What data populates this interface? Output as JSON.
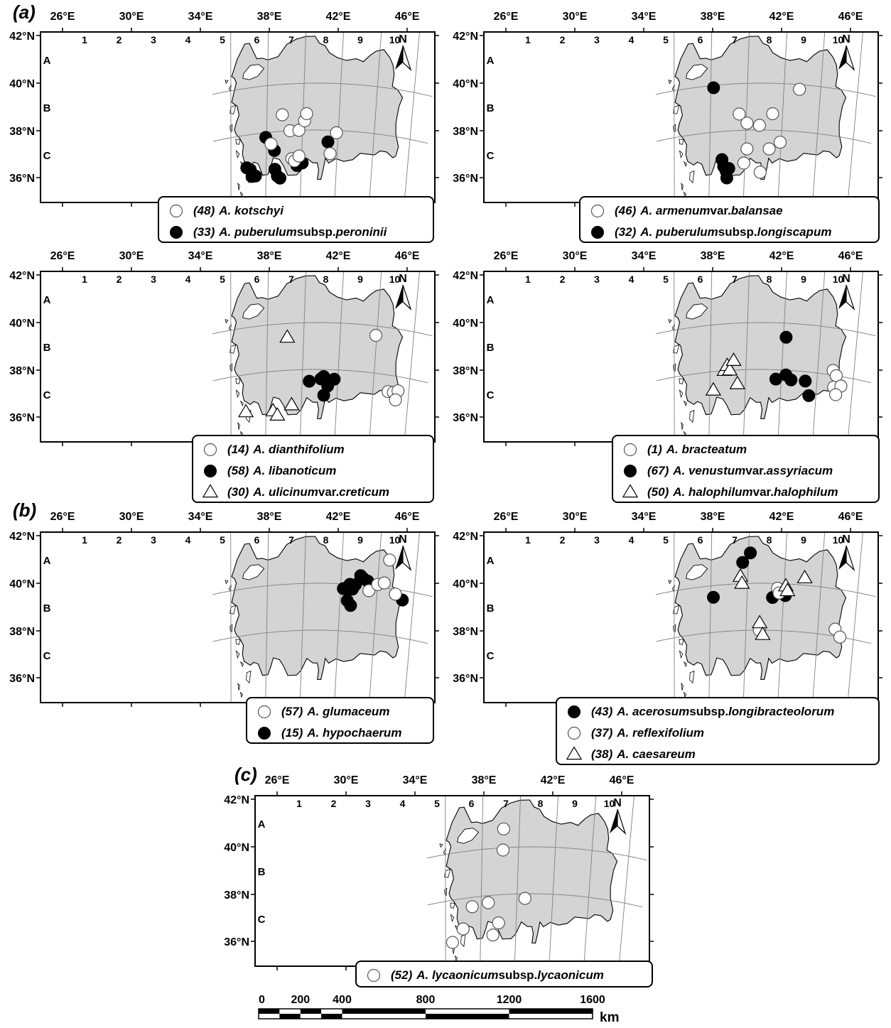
{
  "panel_labels": [
    "(a)",
    "(b)",
    "(c)"
  ],
  "longitude_labels": [
    "26°E",
    "30°E",
    "34°E",
    "38°E",
    "42°E",
    "46°E"
  ],
  "latitude_labels": [
    "42°N",
    "40°N",
    "38°N",
    "36°N"
  ],
  "grid_columns": [
    "1",
    "2",
    "3",
    "4",
    "5",
    "6",
    "7",
    "8",
    "9",
    "10"
  ],
  "grid_rows": [
    "A",
    "B",
    "C"
  ],
  "north_label": "N",
  "colors": {
    "land": "#d4d4d4",
    "water": "#ffffff",
    "outline": "#000000",
    "graticule": "#808080"
  },
  "maps": [
    {
      "name": "a1",
      "legend": [
        {
          "symbol": "open-circle",
          "number": "(48)",
          "parts": [
            [
              "i",
              "A. kotschyi"
            ]
          ]
        },
        {
          "symbol": "filled-circle",
          "number": "(33)",
          "parts": [
            [
              "i",
              "A. puberulum"
            ],
            [
              "r",
              " subsp. "
            ],
            [
              "i",
              "peroninii"
            ]
          ]
        }
      ],
      "points": [
        {
          "symbol": "filled-circle",
          "lon": 27.8,
          "lat": 36.6
        },
        {
          "symbol": "filled-circle",
          "lon": 28.2,
          "lat": 36.5
        },
        {
          "symbol": "filled-circle",
          "lon": 28.4,
          "lat": 36.2
        },
        {
          "symbol": "filled-circle",
          "lon": 28.8,
          "lat": 36.2
        },
        {
          "symbol": "filled-circle",
          "lon": 29.9,
          "lat": 37.8
        },
        {
          "symbol": "filled-circle",
          "lon": 30.9,
          "lat": 37.2
        },
        {
          "symbol": "filled-circle",
          "lon": 31.0,
          "lat": 36.4
        },
        {
          "symbol": "filled-circle",
          "lon": 31.3,
          "lat": 36.1
        },
        {
          "symbol": "filled-circle",
          "lon": 31.6,
          "lat": 36.0
        },
        {
          "symbol": "filled-circle",
          "lon": 33.5,
          "lat": 36.5
        },
        {
          "symbol": "filled-circle",
          "lon": 34.1,
          "lat": 36.6
        },
        {
          "symbol": "filled-circle",
          "lon": 36.9,
          "lat": 37.5
        },
        {
          "symbol": "open-circle",
          "lon": 31.7,
          "lat": 38.7
        },
        {
          "symbol": "open-circle",
          "lon": 32.6,
          "lat": 38.0
        },
        {
          "symbol": "open-circle",
          "lon": 33.6,
          "lat": 38.0
        },
        {
          "symbol": "open-circle",
          "lon": 34.2,
          "lat": 38.4
        },
        {
          "symbol": "open-circle",
          "lon": 34.4,
          "lat": 38.7
        },
        {
          "symbol": "open-circle",
          "lon": 32.9,
          "lat": 36.8
        },
        {
          "symbol": "open-circle",
          "lon": 33.2,
          "lat": 36.7
        },
        {
          "symbol": "open-circle",
          "lon": 33.7,
          "lat": 36.9
        },
        {
          "symbol": "open-circle",
          "lon": 37.2,
          "lat": 37.0
        },
        {
          "symbol": "open-circle",
          "lon": 37.8,
          "lat": 37.9
        },
        {
          "symbol": "open-circle",
          "lon": 30.5,
          "lat": 37.5
        }
      ]
    },
    {
      "name": "a2",
      "legend": [
        {
          "symbol": "open-circle",
          "number": "(46)",
          "parts": [
            [
              "i",
              "A. armenum"
            ],
            [
              "r",
              " var. "
            ],
            [
              "i",
              "balansae"
            ]
          ]
        },
        {
          "symbol": "filled-circle",
          "number": "(32)",
          "parts": [
            [
              "i",
              "A. puberulum"
            ],
            [
              "r",
              " subsp. "
            ],
            [
              "i",
              "longiscapum"
            ]
          ]
        }
      ],
      "points": [
        {
          "symbol": "filled-circle",
          "lon": 30.3,
          "lat": 39.9
        },
        {
          "symbol": "filled-circle",
          "lon": 31.4,
          "lat": 36.8
        },
        {
          "symbol": "filled-circle",
          "lon": 31.6,
          "lat": 36.5
        },
        {
          "symbol": "filled-circle",
          "lon": 31.9,
          "lat": 36.3
        },
        {
          "symbol": "filled-circle",
          "lon": 32.2,
          "lat": 36.4
        },
        {
          "symbol": "filled-circle",
          "lon": 32.0,
          "lat": 36.0
        },
        {
          "symbol": "open-circle",
          "lon": 33.2,
          "lat": 38.7
        },
        {
          "symbol": "open-circle",
          "lon": 34.1,
          "lat": 38.3
        },
        {
          "symbol": "open-circle",
          "lon": 35.5,
          "lat": 38.2
        },
        {
          "symbol": "open-circle",
          "lon": 36.9,
          "lat": 38.7
        },
        {
          "symbol": "open-circle",
          "lon": 37.9,
          "lat": 37.5
        },
        {
          "symbol": "open-circle",
          "lon": 36.7,
          "lat": 37.2
        },
        {
          "symbol": "open-circle",
          "lon": 34.2,
          "lat": 37.2
        },
        {
          "symbol": "open-circle",
          "lon": 33.9,
          "lat": 36.6
        },
        {
          "symbol": "open-circle",
          "lon": 35.8,
          "lat": 36.2
        },
        {
          "symbol": "open-circle",
          "lon": 39.7,
          "lat": 39.8
        }
      ]
    },
    {
      "name": "a3",
      "legend": [
        {
          "symbol": "open-circle",
          "number": "(14)",
          "parts": [
            [
              "i",
              "A. dianthifolium"
            ]
          ]
        },
        {
          "symbol": "filled-circle",
          "number": "(58)",
          "parts": [
            [
              "i",
              "A. libanoticum"
            ]
          ]
        },
        {
          "symbol": "open-triangle",
          "number": "(30)",
          "parts": [
            [
              "i",
              "A. ulicinum"
            ],
            [
              "r",
              " var. "
            ],
            [
              "i",
              "creticum"
            ]
          ]
        }
      ],
      "points": [
        {
          "symbol": "filled-circle",
          "lon": 34.8,
          "lat": 37.5
        },
        {
          "symbol": "filled-circle",
          "lon": 36.1,
          "lat": 37.6
        },
        {
          "symbol": "filled-circle",
          "lon": 36.4,
          "lat": 37.7
        },
        {
          "symbol": "filled-circle",
          "lon": 36.9,
          "lat": 37.3
        },
        {
          "symbol": "filled-circle",
          "lon": 37.6,
          "lat": 37.6
        },
        {
          "symbol": "filled-circle",
          "lon": 36.5,
          "lat": 36.9
        },
        {
          "symbol": "open-triangle",
          "lon": 32.2,
          "lat": 39.4
        },
        {
          "symbol": "open-triangle",
          "lon": 27.7,
          "lat": 36.4
        },
        {
          "symbol": "open-triangle",
          "lon": 30.8,
          "lat": 36.3
        },
        {
          "symbol": "open-triangle",
          "lon": 31.3,
          "lat": 36.1
        },
        {
          "symbol": "open-triangle",
          "lon": 32.9,
          "lat": 36.5
        },
        {
          "symbol": "open-circle",
          "lon": 41.9,
          "lat": 39.6
        },
        {
          "symbol": "open-circle",
          "lon": 43.7,
          "lat": 37.3
        },
        {
          "symbol": "open-circle",
          "lon": 44.3,
          "lat": 37.3
        },
        {
          "symbol": "open-circle",
          "lon": 44.8,
          "lat": 37.4
        },
        {
          "symbol": "open-circle",
          "lon": 44.6,
          "lat": 37.0
        }
      ]
    },
    {
      "name": "a4",
      "legend": [
        {
          "symbol": "open-circle",
          "number": "(1)",
          "parts": [
            [
              "i",
              "A. bracteatum"
            ]
          ]
        },
        {
          "symbol": "filled-circle",
          "number": "(67)",
          "parts": [
            [
              "i",
              "A. venustum"
            ],
            [
              "r",
              " var. "
            ],
            [
              "i",
              "assyriacum"
            ]
          ]
        },
        {
          "symbol": "open-triangle",
          "number": "(50)",
          "parts": [
            [
              "i",
              "A. halophilum"
            ],
            [
              "r",
              " var. "
            ],
            [
              "i",
              "halophilum"
            ]
          ]
        }
      ],
      "points": [
        {
          "symbol": "filled-circle",
          "lon": 38.3,
          "lat": 39.4
        },
        {
          "symbol": "filled-circle",
          "lon": 37.4,
          "lat": 37.6
        },
        {
          "symbol": "filled-circle",
          "lon": 38.5,
          "lat": 37.8
        },
        {
          "symbol": "filled-circle",
          "lon": 39.1,
          "lat": 37.6
        },
        {
          "symbol": "filled-circle",
          "lon": 40.7,
          "lat": 37.6
        },
        {
          "symbol": "filled-circle",
          "lon": 41.2,
          "lat": 37.0
        },
        {
          "symbol": "open-triangle",
          "lon": 30.4,
          "lat": 37.2
        },
        {
          "symbol": "open-triangle",
          "lon": 31.6,
          "lat": 38.0
        },
        {
          "symbol": "open-triangle",
          "lon": 31.9,
          "lat": 38.2
        },
        {
          "symbol": "open-triangle",
          "lon": 32.2,
          "lat": 38.0
        },
        {
          "symbol": "open-triangle",
          "lon": 32.6,
          "lat": 38.4
        },
        {
          "symbol": "open-triangle",
          "lon": 33.1,
          "lat": 37.4
        },
        {
          "symbol": "open-circle",
          "lon": 43.7,
          "lat": 38.2
        },
        {
          "symbol": "open-circle",
          "lon": 44.1,
          "lat": 38.0
        },
        {
          "symbol": "open-circle",
          "lon": 43.9,
          "lat": 37.5
        },
        {
          "symbol": "open-circle",
          "lon": 44.7,
          "lat": 37.6
        },
        {
          "symbol": "open-circle",
          "lon": 44.2,
          "lat": 37.2
        }
      ]
    },
    {
      "name": "b1",
      "legend": [
        {
          "symbol": "open-circle",
          "number": "(57)",
          "parts": [
            [
              "i",
              "A. glumaceum"
            ]
          ]
        },
        {
          "symbol": "filled-circle",
          "number": "(15)",
          "parts": [
            [
              "i",
              "A. hypochaerum"
            ]
          ]
        }
      ],
      "points": [
        {
          "symbol": "filled-circle",
          "lon": 38.3,
          "lat": 39.8
        },
        {
          "symbol": "filled-circle",
          "lon": 38.9,
          "lat": 39.8
        },
        {
          "symbol": "filled-circle",
          "lon": 39.3,
          "lat": 39.8
        },
        {
          "symbol": "filled-circle",
          "lon": 39.6,
          "lat": 40.0
        },
        {
          "symbol": "filled-circle",
          "lon": 40.1,
          "lat": 40.4
        },
        {
          "symbol": "filled-circle",
          "lon": 40.4,
          "lat": 40.3
        },
        {
          "symbol": "filled-circle",
          "lon": 40.9,
          "lat": 40.2
        },
        {
          "symbol": "filled-circle",
          "lon": 38.8,
          "lat": 39.3
        },
        {
          "symbol": "filled-circle",
          "lon": 39.2,
          "lat": 39.1
        },
        {
          "symbol": "filled-circle",
          "lon": 39.0,
          "lat": 40.0
        },
        {
          "symbol": "filled-circle",
          "lon": 44.8,
          "lat": 39.6
        },
        {
          "symbol": "open-circle",
          "lon": 41.1,
          "lat": 39.8
        },
        {
          "symbol": "open-circle",
          "lon": 42.0,
          "lat": 40.1
        },
        {
          "symbol": "open-circle",
          "lon": 42.7,
          "lat": 40.2
        },
        {
          "symbol": "open-circle",
          "lon": 43.1,
          "lat": 41.2
        },
        {
          "symbol": "open-circle",
          "lon": 44.0,
          "lat": 39.8
        }
      ]
    },
    {
      "name": "b2",
      "legend": [
        {
          "symbol": "filled-circle",
          "number": "(43)",
          "parts": [
            [
              "i",
              "A. acerosum"
            ],
            [
              "r",
              " subsp. "
            ],
            [
              "i",
              "longibracteolorum"
            ]
          ]
        },
        {
          "symbol": "open-circle",
          "number": "(37)",
          "parts": [
            [
              "i",
              "A. reflexifolium"
            ]
          ]
        },
        {
          "symbol": "open-triangle",
          "number": "(38)",
          "parts": [
            [
              "i",
              "A. caesareum"
            ]
          ]
        }
      ],
      "points": [
        {
          "symbol": "filled-circle",
          "lon": 30.3,
          "lat": 39.5
        },
        {
          "symbol": "filled-circle",
          "lon": 33.4,
          "lat": 40.9
        },
        {
          "symbol": "filled-circle",
          "lon": 34.2,
          "lat": 41.3
        },
        {
          "symbol": "filled-circle",
          "lon": 36.8,
          "lat": 39.4
        },
        {
          "symbol": "filled-circle",
          "lon": 38.2,
          "lat": 39.5
        },
        {
          "symbol": "open-circle",
          "lon": 37.3,
          "lat": 39.8
        },
        {
          "symbol": "open-circle",
          "lon": 37.5,
          "lat": 39.6
        },
        {
          "symbol": "open-circle",
          "lon": 35.5,
          "lat": 38.0
        },
        {
          "symbol": "open-circle",
          "lon": 43.9,
          "lat": 38.3
        },
        {
          "symbol": "open-circle",
          "lon": 44.5,
          "lat": 38.0
        },
        {
          "symbol": "open-triangle",
          "lon": 33.2,
          "lat": 40.3
        },
        {
          "symbol": "open-triangle",
          "lon": 33.4,
          "lat": 40.0
        },
        {
          "symbol": "open-triangle",
          "lon": 38.2,
          "lat": 39.9
        },
        {
          "symbol": "open-triangle",
          "lon": 38.4,
          "lat": 39.7
        },
        {
          "symbol": "open-triangle",
          "lon": 40.2,
          "lat": 40.3
        },
        {
          "symbol": "open-triangle",
          "lon": 35.5,
          "lat": 38.3
        },
        {
          "symbol": "open-triangle",
          "lon": 35.9,
          "lat": 37.8
        }
      ]
    },
    {
      "name": "c1",
      "legend": [
        {
          "symbol": "open-circle",
          "number": "(52)",
          "parts": [
            [
              "i",
              "A. lycaonicum"
            ],
            [
              "r",
              " subsp. "
            ],
            [
              "i",
              "lycaonicum"
            ]
          ]
        }
      ],
      "points": [
        {
          "symbol": "open-circle",
          "lon": 32.3,
          "lat": 40.8
        },
        {
          "symbol": "open-circle",
          "lon": 32.3,
          "lat": 39.9
        },
        {
          "symbol": "open-circle",
          "lon": 29.0,
          "lat": 37.6
        },
        {
          "symbol": "open-circle",
          "lon": 30.8,
          "lat": 37.7
        },
        {
          "symbol": "open-circle",
          "lon": 28.0,
          "lat": 36.7
        },
        {
          "symbol": "open-circle",
          "lon": 26.8,
          "lat": 36.2
        },
        {
          "symbol": "open-circle",
          "lon": 32.0,
          "lat": 36.8
        },
        {
          "symbol": "open-circle",
          "lon": 31.4,
          "lat": 36.3
        },
        {
          "symbol": "open-circle",
          "lon": 34.9,
          "lat": 37.8
        }
      ]
    }
  ],
  "scale_bar": {
    "ticks": [
      "0",
      "200",
      "400",
      "800",
      "1200",
      "1600"
    ],
    "tick_values": [
      0,
      200,
      400,
      800,
      1200,
      1600
    ],
    "unit": "km"
  }
}
